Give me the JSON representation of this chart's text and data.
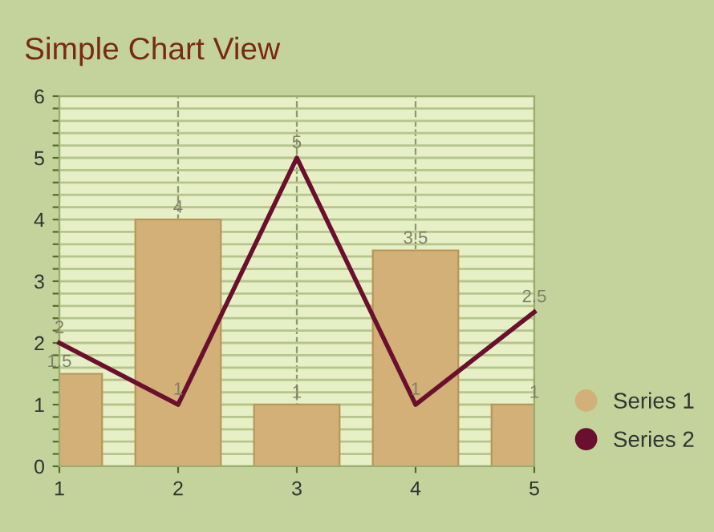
{
  "chart_data": {
    "type": "bar",
    "title": "Simple Chart View",
    "x": [
      1,
      2,
      3,
      4,
      5
    ],
    "series": [
      {
        "name": "Series 1",
        "color": "#d2b078",
        "values": [
          1.5,
          4,
          1,
          3.5,
          1
        ]
      },
      {
        "name": "Series 2",
        "type": "line",
        "color": "#6b0f2e",
        "values": [
          2,
          1,
          5,
          1,
          2.5
        ],
        "marker": "none",
        "line_style": "solid"
      }
    ],
    "xlim": [
      1,
      5
    ],
    "xticks": [
      1,
      2,
      3,
      4,
      5
    ],
    "ylim": [
      0,
      6
    ],
    "yticks": [
      0,
      {
        "value": 0.2,
        "label": null
      },
      {
        "value": 0.4,
        "label": null
      },
      {
        "value": 0.6,
        "label": null
      },
      {
        "value": 0.8,
        "label": null
      },
      1,
      {
        "value": 1.2,
        "label": null
      },
      {
        "value": 1.4,
        "label": null
      },
      {
        "value": 1.6,
        "label": null
      },
      {
        "value": 1.8,
        "label": null
      },
      2,
      {
        "value": 2.2,
        "label": null
      },
      {
        "value": 2.4,
        "label": null
      },
      {
        "value": 2.6,
        "label": null
      },
      {
        "value": 2.8,
        "label": null
      },
      3,
      {
        "value": 3.2,
        "label": null
      },
      {
        "value": 3.4,
        "label": null
      },
      {
        "value": 3.6,
        "label": null
      },
      {
        "value": 3.8,
        "label": null
      },
      4,
      {
        "value": 4.2,
        "label": null
      },
      {
        "value": 4.4,
        "label": null
      },
      {
        "value": 4.6,
        "label": null
      },
      {
        "value": 4.8,
        "label": null
      },
      5,
      {
        "value": 5.2,
        "label": null
      },
      {
        "value": 5.4,
        "label": null
      },
      {
        "value": 5.6,
        "label": null
      },
      {
        "value": 5.8,
        "label": null
      },
      6
    ],
    "grid": true,
    "legend": "right",
    "data_labels": true
  }
}
